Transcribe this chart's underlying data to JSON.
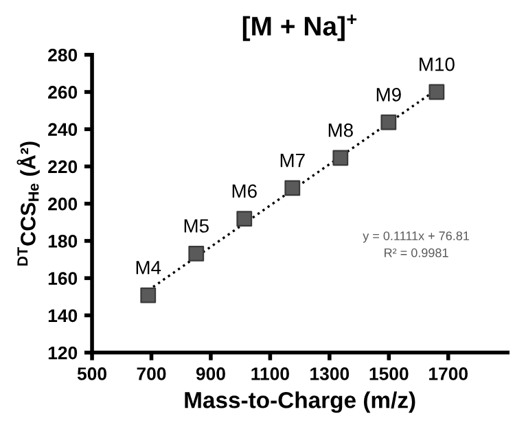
{
  "chart_data": {
    "type": "scatter",
    "title": "[M + Na]$^{+}$",
    "xlabel": "Mass-to-Charge (m/z)",
    "ylabel": "$^{DT}$CCS$_{He}$ (Å²)",
    "x": [
      689,
      851,
      1013,
      1175,
      1337,
      1499,
      1661
    ],
    "series": [
      {
        "color": "#5a5a5a",
        "marker": "square",
        "values": [
          150.8,
          173.2,
          191.9,
          208.4,
          224.6,
          243.7,
          260.0
        ]
      },
      {
        "type": "line",
        "color": "#000000",
        "line_style": "dotted",
        "x": [
          689,
          1661
        ],
        "values": [
          153.4,
          261.3
        ]
      }
    ],
    "xlim": [
      500,
      1900
    ],
    "xticks": [
      500,
      700,
      900,
      1100,
      1300,
      1500,
      1700
    ],
    "ylim": [
      120,
      280
    ],
    "yticks": [
      120,
      140,
      160,
      180,
      200,
      220,
      240,
      260,
      280
    ],
    "grid": false,
    "legend": false,
    "annotations": [
      {
        "text": "M4",
        "x": 689,
        "y": 150.8
      },
      {
        "text": "M5",
        "x": 851,
        "y": 173.2
      },
      {
        "text": "M6",
        "x": 1013,
        "y": 191.9
      },
      {
        "text": "M7",
        "x": 1175,
        "y": 208.4
      },
      {
        "text": "M8",
        "x": 1337,
        "y": 224.6
      },
      {
        "text": "M9",
        "x": 1499,
        "y": 243.7
      },
      {
        "text": "M10",
        "x": 1661,
        "y": 260.0
      },
      "y = 0.1111x + 76.81\nR² = 0.9981"
    ]
  }
}
